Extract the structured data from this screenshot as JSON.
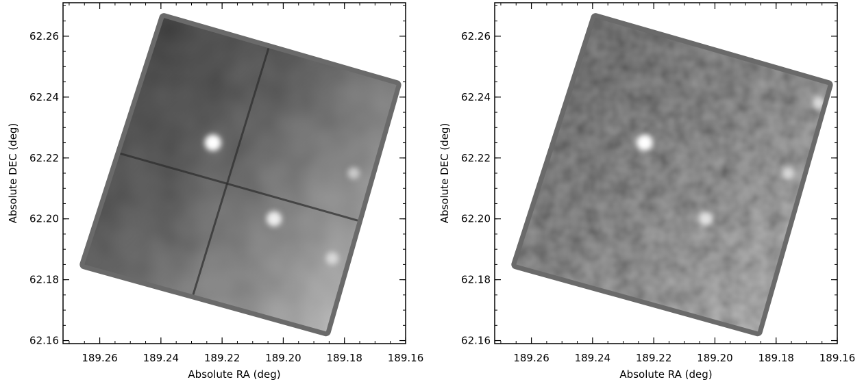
{
  "chart_data": [
    {
      "type": "heatmap",
      "colormap": "grayscale",
      "xlabel": "Absolute RA (deg)",
      "ylabel": "Absolute DEC (deg)",
      "xlim": [
        189.272,
        189.16
      ],
      "ylim": [
        62.159,
        62.271
      ],
      "x_ticks": [
        "189.26",
        "189.24",
        "189.22",
        "189.20",
        "189.18",
        "189.16"
      ],
      "y_ticks": [
        "62.16",
        "62.18",
        "62.20",
        "62.22",
        "62.24",
        "62.26"
      ],
      "x_tick_values": [
        189.26,
        189.24,
        189.22,
        189.2,
        189.18,
        189.16
      ],
      "y_tick_values": [
        62.16,
        62.18,
        62.2,
        62.22,
        62.24,
        62.26
      ],
      "footprint_corners": [
        [
          189.239,
          62.266
        ],
        [
          189.163,
          62.244
        ],
        [
          189.186,
          62.163
        ],
        [
          189.265,
          62.185
        ]
      ],
      "point_sources": [
        {
          "ra": 189.223,
          "dec": 62.225,
          "brightness": 1.0
        },
        {
          "ra": 189.203,
          "dec": 62.2,
          "brightness": 0.85
        },
        {
          "ra": 189.184,
          "dec": 62.187,
          "brightness": 0.55
        },
        {
          "ra": 189.177,
          "dec": 62.215,
          "brightness": 0.45
        }
      ]
    },
    {
      "type": "heatmap",
      "colormap": "grayscale",
      "xlabel": "Absolute RA (deg)",
      "ylabel": "Absolute DEC (deg)",
      "xlim": [
        189.272,
        189.16
      ],
      "ylim": [
        62.159,
        62.271
      ],
      "x_ticks": [
        "189.26",
        "189.24",
        "189.22",
        "189.20",
        "189.18",
        "189.16"
      ],
      "y_ticks": [
        "62.16",
        "62.18",
        "62.20",
        "62.22",
        "62.24",
        "62.26"
      ],
      "x_tick_values": [
        189.26,
        189.24,
        189.22,
        189.2,
        189.18,
        189.16
      ],
      "y_tick_values": [
        62.16,
        62.18,
        62.2,
        62.22,
        62.24,
        62.26
      ],
      "footprint_corners": [
        [
          189.239,
          62.266
        ],
        [
          189.163,
          62.244
        ],
        [
          189.186,
          62.163
        ],
        [
          189.265,
          62.185
        ]
      ],
      "point_sources": [
        {
          "ra": 189.223,
          "dec": 62.225,
          "brightness": 1.0
        },
        {
          "ra": 189.203,
          "dec": 62.2,
          "brightness": 0.7
        },
        {
          "ra": 189.166,
          "dec": 62.238,
          "brightness": 0.6
        },
        {
          "ra": 189.176,
          "dec": 62.215,
          "brightness": 0.55
        }
      ]
    }
  ]
}
